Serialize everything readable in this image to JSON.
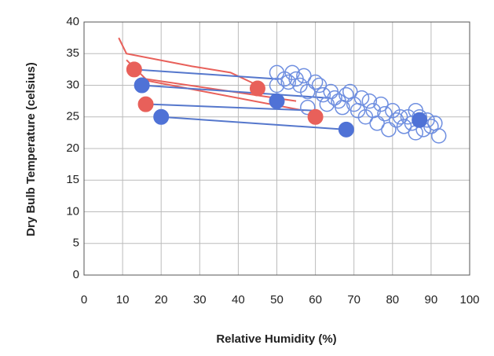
{
  "chart_data": {
    "type": "scatter",
    "x_label": "Relative Humidity (%)",
    "y_label": "Dry Bulb Temperature (celsius)",
    "xlim": [
      0,
      100
    ],
    "xticks": [
      0,
      10,
      20,
      30,
      40,
      50,
      60,
      70,
      80,
      90,
      100
    ],
    "ylim": [
      0,
      40
    ],
    "yticks": [
      0,
      5,
      10,
      15,
      20,
      25,
      30,
      35,
      40
    ],
    "grid": true,
    "series": [
      {
        "mode": "line",
        "color": "#e8605a",
        "x": [
          9,
          11,
          28,
          38,
          45,
          null,
          11,
          16,
          55,
          null,
          14,
          57
        ],
        "values": [
          37.5,
          35,
          33,
          32,
          30,
          null,
          34,
          31,
          27.5,
          null,
          31,
          26
        ]
      },
      {
        "mode": "line",
        "color": "#5577cc",
        "x": [
          13,
          50,
          null,
          15,
          63,
          null,
          17,
          60,
          null,
          20,
          68
        ],
        "values": [
          32.5,
          31,
          null,
          30,
          28,
          null,
          27,
          26,
          null,
          25,
          23
        ]
      },
      {
        "mode": "open",
        "color": "#6f8fe0",
        "x": [
          50,
          52,
          53,
          54,
          55,
          56,
          57,
          58,
          60,
          61,
          62,
          63,
          64,
          65,
          66,
          67,
          68,
          69,
          70,
          71,
          72,
          73,
          74,
          75,
          76,
          77,
          78,
          79,
          80,
          81,
          82,
          83,
          84,
          85,
          86,
          86,
          87,
          88,
          89,
          90,
          91,
          92,
          50,
          58
        ],
        "values": [
          32,
          31,
          30.5,
          32,
          31,
          30,
          31.5,
          29,
          30.5,
          30,
          28.5,
          27,
          29,
          28,
          27.5,
          26.5,
          28.5,
          29,
          27,
          26,
          28,
          25,
          27.5,
          26,
          24,
          27,
          25.5,
          23,
          26,
          24.5,
          25,
          23.5,
          25,
          24,
          22.5,
          26,
          25,
          23,
          24.5,
          23.5,
          24,
          22,
          30,
          26.5
        ]
      },
      {
        "mode": "filled",
        "color": "#e8605a",
        "x": [
          13,
          16,
          45,
          60
        ],
        "values": [
          32.5,
          27,
          29.5,
          25
        ]
      },
      {
        "mode": "filled",
        "color": "#4f72d6",
        "x": [
          15,
          20,
          50,
          68,
          87
        ],
        "values": [
          30,
          25,
          27.5,
          23,
          24.5
        ]
      }
    ]
  }
}
